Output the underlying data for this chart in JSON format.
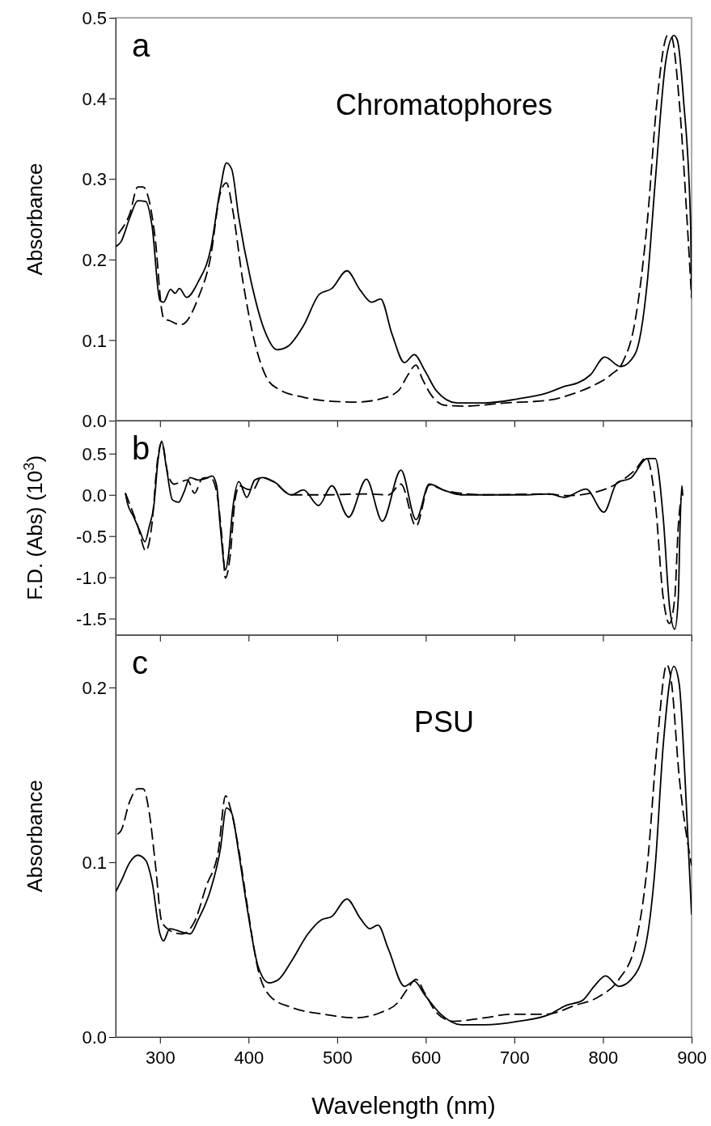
{
  "chart_data": [
    {
      "type": "line",
      "title": "a",
      "annotations": [
        "Chromatophores"
      ],
      "ylabel": "Absorbance",
      "xlim": [
        250,
        900
      ],
      "xticks": [
        300,
        400,
        500,
        600,
        700,
        800,
        900
      ],
      "ylim": [
        0,
        0.5
      ],
      "yticks": [
        {
          "value": 0,
          "label": "0.0"
        },
        0.1,
        0.2,
        0.3,
        0.4,
        0.5
      ],
      "tick_labels": "y",
      "series": [
        {
          "color": "#000000",
          "line_style": "solid",
          "x": [
            250,
            256,
            266,
            275,
            284,
            291,
            300,
            304,
            312,
            317,
            322,
            330,
            343,
            357,
            368,
            375,
            381,
            389,
            402,
            418,
            432,
            444,
            462,
            480,
            494,
            511,
            526,
            539,
            549,
            562,
            576,
            587,
            599,
            612,
            635,
            667,
            704,
            736,
            758,
            772,
            786,
            802,
            820,
            836,
            850,
            859,
            871,
            880,
            884,
            891,
            899,
            900
          ],
          "values": [
            0.216,
            0.222,
            0.252,
            0.273,
            0.272,
            0.242,
            0.149,
            0.147,
            0.163,
            0.158,
            0.164,
            0.153,
            0.172,
            0.212,
            0.287,
            0.32,
            0.312,
            0.252,
            0.177,
            0.112,
            0.088,
            0.092,
            0.118,
            0.157,
            0.164,
            0.186,
            0.162,
            0.147,
            0.151,
            0.107,
            0.072,
            0.082,
            0.062,
            0.037,
            0.022,
            0.022,
            0.027,
            0.034,
            0.043,
            0.047,
            0.057,
            0.079,
            0.067,
            0.082,
            0.172,
            0.297,
            0.447,
            0.478,
            0.472,
            0.397,
            0.24,
            0.155
          ]
        },
        {
          "color": "#000000",
          "line_style": "dashed",
          "x": [
            253,
            266,
            275,
            281,
            288,
            295,
            302,
            304,
            311,
            323,
            329,
            343,
            357,
            368,
            375,
            382,
            393,
            407,
            421,
            434,
            462,
            494,
            521,
            549,
            569,
            580,
            589,
            596,
            608,
            622,
            644,
            690,
            736,
            768,
            790,
            809,
            822,
            836,
            850,
            861,
            873,
            877,
            886,
            895,
            900
          ],
          "values": [
            0.232,
            0.257,
            0.29,
            0.29,
            0.272,
            0.222,
            0.137,
            0.127,
            0.124,
            0.119,
            0.122,
            0.152,
            0.202,
            0.282,
            0.295,
            0.262,
            0.177,
            0.097,
            0.052,
            0.039,
            0.029,
            0.024,
            0.023,
            0.027,
            0.037,
            0.057,
            0.069,
            0.052,
            0.029,
            0.019,
            0.018,
            0.022,
            0.025,
            0.034,
            0.044,
            0.057,
            0.072,
            0.122,
            0.247,
            0.397,
            0.478,
            0.477,
            0.397,
            0.247,
            0.152
          ]
        }
      ]
    },
    {
      "type": "line",
      "title": "b",
      "ylabel": "F.D. (Abs) (10$^{3}$)",
      "xlim": [
        250,
        900
      ],
      "xticks": [
        300,
        400,
        500,
        600,
        700,
        800,
        900
      ],
      "ylim": [
        -1.7,
        0.9
      ],
      "yticks": [
        {
          "value": -1.5,
          "label": "-1.5"
        },
        {
          "value": -1,
          "label": "-1.0"
        },
        {
          "value": -0.5,
          "label": "-0.5"
        },
        {
          "value": 0,
          "label": "0.0"
        },
        0.5
      ],
      "tick_labels": "y",
      "series": [
        {
          "color": "#000000",
          "line_style": "solid",
          "x": [
            261,
            263,
            270,
            277,
            283,
            288,
            293,
            298,
            302,
            307,
            314,
            321,
            327,
            334,
            343,
            352,
            359,
            364,
            368,
            374,
            377,
            382,
            389,
            398,
            407,
            416,
            430,
            448,
            462,
            479,
            494,
            513,
            533,
            551,
            572,
            589,
            604,
            622,
            640,
            713,
            740,
            756,
            781,
            801,
            816,
            831,
            850,
            859,
            868,
            875,
            881,
            885,
            887,
            889,
            890
          ],
          "values": [
            0.02,
            -0.09,
            -0.26,
            -0.43,
            -0.57,
            -0.38,
            -0.14,
            0.44,
            0.65,
            0.35,
            -0.06,
            -0.09,
            0.03,
            0.21,
            0.18,
            0.2,
            0.23,
            0.11,
            -0.38,
            -0.91,
            -0.76,
            -0.18,
            0.16,
            -0.03,
            0.18,
            0.21,
            0.15,
            0,
            0.06,
            -0.13,
            0.11,
            -0.27,
            0.19,
            -0.32,
            0.3,
            -0.3,
            0.13,
            0.05,
            0,
            0,
            0.01,
            -0.03,
            0.07,
            -0.21,
            0.15,
            0.2,
            0.44,
            0.44,
            -0.28,
            -1.34,
            -1.63,
            -1.25,
            -0.38,
            0.11,
            -0.01
          ]
        },
        {
          "color": "#000000",
          "line_style": "dashed",
          "x": [
            261,
            275,
            284,
            291,
            297,
            302,
            309,
            316,
            322,
            331,
            339,
            348,
            357,
            364,
            370,
            374,
            379,
            385,
            390,
            398,
            405,
            414,
            428,
            448,
            484,
            530,
            558,
            572,
            589,
            604,
            622,
            667,
            736,
            759,
            786,
            813,
            836,
            849,
            859,
            868,
            875,
            881,
            885,
            888
          ],
          "values": [
            0.02,
            -0.38,
            -0.68,
            -0.35,
            0.4,
            0.64,
            0.25,
            0.13,
            0.15,
            0.18,
            0.02,
            0.2,
            0.21,
            0.03,
            -0.52,
            -1.01,
            -0.76,
            -0.04,
            0.11,
            0.07,
            0.06,
            0.21,
            0.16,
            0,
            0,
            0.01,
            0,
            0.13,
            -0.38,
            0.12,
            0.05,
            0,
            0.01,
            -0.01,
            0.02,
            0.12,
            0.3,
            0.45,
            -0.09,
            -1.25,
            -1.56,
            -1.25,
            -0.38,
            -0.04
          ]
        }
      ]
    },
    {
      "type": "line",
      "title": "c",
      "annotations": [
        "PSU"
      ],
      "xlabel": "Wavelength (nm)",
      "ylabel": "Absorbance",
      "xlim": [
        250,
        900
      ],
      "xticks": [
        300,
        400,
        500,
        600,
        700,
        800,
        900
      ],
      "ylim": [
        0,
        0.23
      ],
      "yticks": [
        {
          "value": 0,
          "label": "0.0"
        },
        0.1,
        0.2
      ],
      "series": [
        {
          "color": "#000000",
          "line_style": "solid",
          "x": [
            250,
            256,
            266,
            275,
            284,
            291,
            300,
            304,
            311,
            325,
            334,
            343,
            357,
            368,
            375,
            381,
            389,
            398,
            411,
            423,
            434,
            448,
            467,
            482,
            494,
            511,
            526,
            537,
            546,
            558,
            576,
            587,
            599,
            617,
            640,
            667,
            704,
            740,
            758,
            777,
            790,
            803,
            818,
            832,
            848,
            859,
            868,
            880,
            886,
            893,
            900
          ],
          "values": [
            0.083,
            0.089,
            0.1,
            0.104,
            0.101,
            0.089,
            0.059,
            0.055,
            0.062,
            0.06,
            0.059,
            0.067,
            0.084,
            0.107,
            0.131,
            0.128,
            0.105,
            0.075,
            0.04,
            0.031,
            0.033,
            0.043,
            0.059,
            0.067,
            0.069,
            0.079,
            0.068,
            0.062,
            0.064,
            0.05,
            0.029,
            0.032,
            0.024,
            0.013,
            0.007,
            0.007,
            0.009,
            0.013,
            0.018,
            0.021,
            0.029,
            0.035,
            0.029,
            0.033,
            0.052,
            0.098,
            0.167,
            0.212,
            0.202,
            0.144,
            0.07
          ]
        },
        {
          "color": "#000000",
          "line_style": "dashed",
          "x": [
            252,
            256,
            266,
            275,
            281,
            288,
            295,
            302,
            311,
            325,
            339,
            352,
            366,
            374,
            380,
            389,
            398,
            411,
            425,
            448,
            485,
            521,
            549,
            569,
            580,
            589,
            599,
            612,
            631,
            667,
            695,
            736,
            768,
            795,
            818,
            836,
            850,
            861,
            872,
            877,
            886,
            900
          ],
          "values": [
            0.116,
            0.118,
            0.135,
            0.142,
            0.142,
            0.128,
            0.098,
            0.066,
            0.061,
            0.059,
            0.066,
            0.086,
            0.107,
            0.138,
            0.13,
            0.107,
            0.077,
            0.038,
            0.023,
            0.017,
            0.013,
            0.011,
            0.014,
            0.02,
            0.028,
            0.033,
            0.025,
            0.014,
            0.009,
            0.011,
            0.013,
            0.013,
            0.018,
            0.023,
            0.033,
            0.052,
            0.098,
            0.167,
            0.213,
            0.204,
            0.149,
            0.098
          ]
        }
      ]
    }
  ]
}
